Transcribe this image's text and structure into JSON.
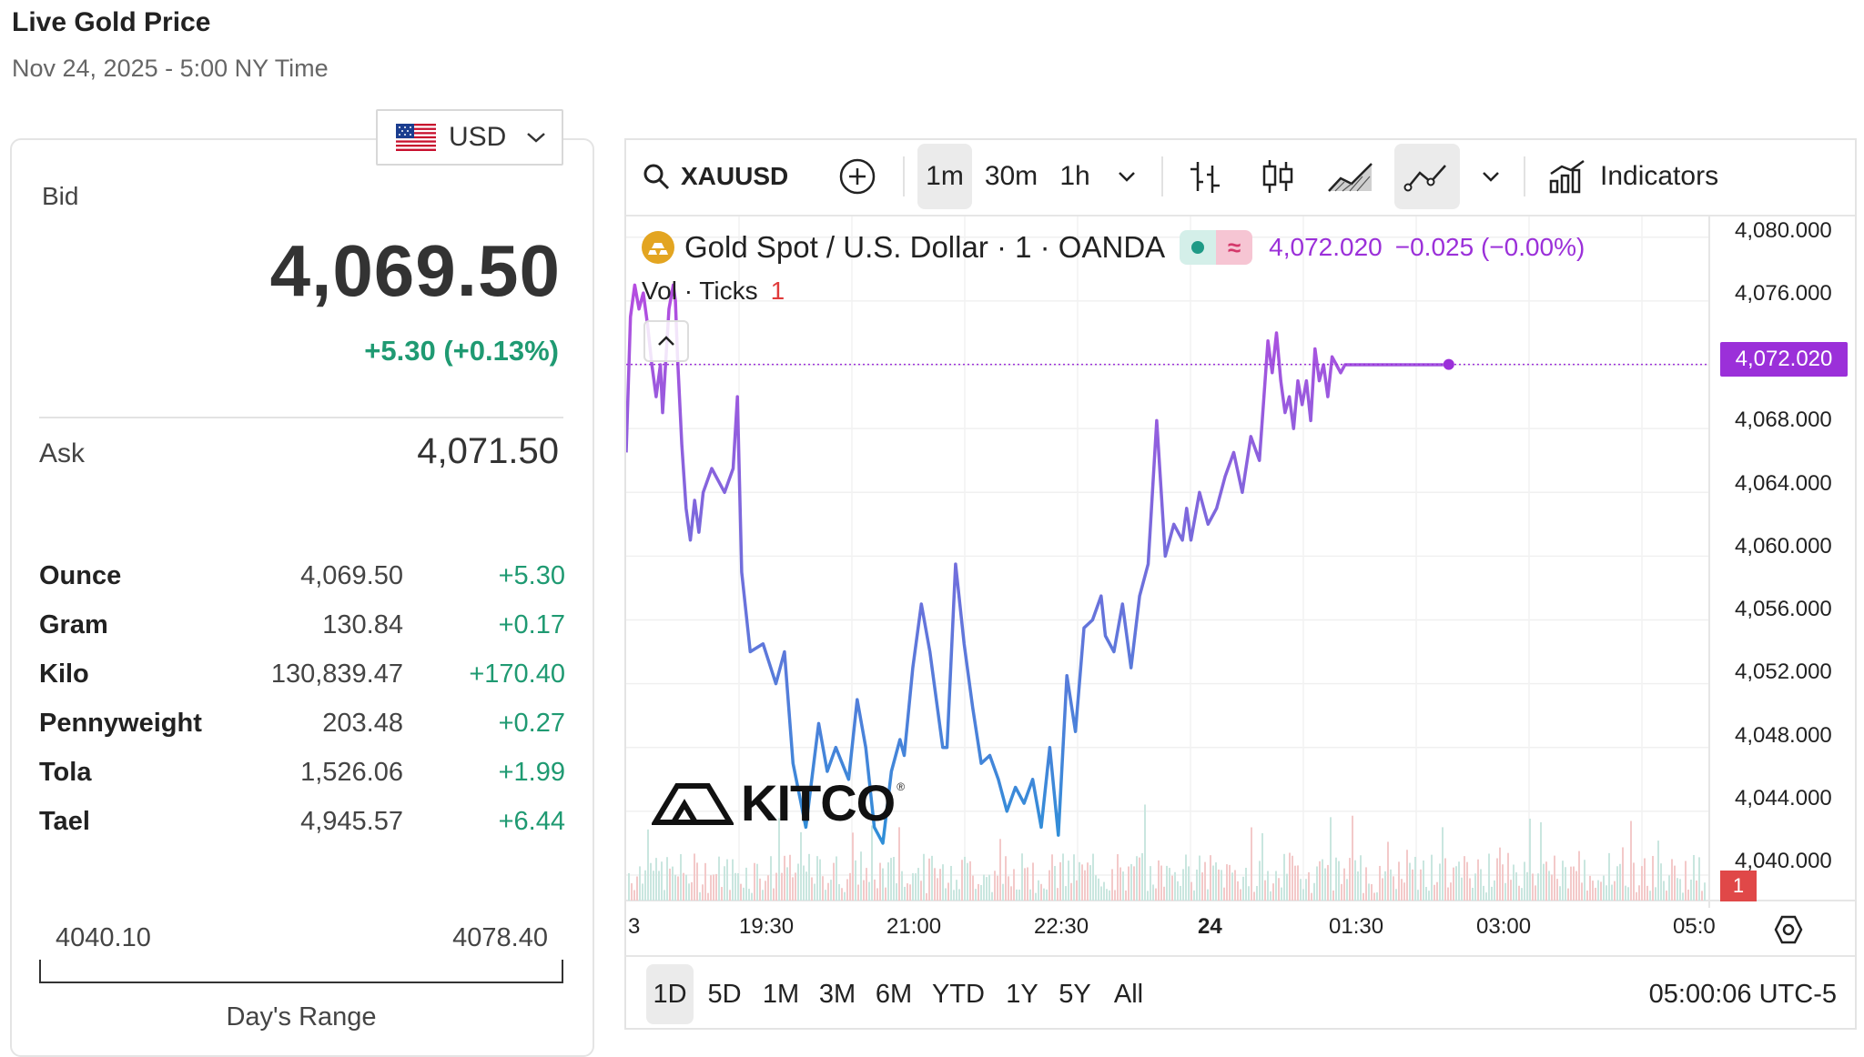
{
  "header": {
    "title": "Live Gold Price",
    "subtitle": "Nov 24, 2025 - 5:00 NY Time"
  },
  "currency": {
    "selected": "USD"
  },
  "price_panel": {
    "bid_label": "Bid",
    "bid": "4,069.50",
    "bid_change": "+5.30 (+0.13%)",
    "ask_label": "Ask",
    "ask": "4,071.50",
    "units": [
      {
        "name": "Ounce",
        "price": "4,069.50",
        "change": "+5.30"
      },
      {
        "name": "Gram",
        "price": "130.84",
        "change": "+0.17"
      },
      {
        "name": "Kilo",
        "price": "130,839.47",
        "change": "+170.40"
      },
      {
        "name": "Pennyweight",
        "price": "203.48",
        "change": "+0.27"
      },
      {
        "name": "Tola",
        "price": "1,526.06",
        "change": "+1.99"
      },
      {
        "name": "Tael",
        "price": "4,945.57",
        "change": "+6.44"
      }
    ],
    "range_low": "4040.10",
    "range_high": "4078.40",
    "range_caption": "Day's Range"
  },
  "chart_toolbar": {
    "symbol": "XAUUSD",
    "intervals": [
      "1m",
      "30m",
      "1h"
    ],
    "active_interval": "1m",
    "indicators_label": "Indicators"
  },
  "chart_legend": {
    "instrument": "Gold Spot / U.S. Dollar · 1 · OANDA",
    "last_price": "4,072.020",
    "change": "−0.025 (−0.00%)",
    "volume_label": "Vol · Ticks",
    "volume_count": "1"
  },
  "chart_data": {
    "type": "line",
    "y_ticks": [
      "4,080.000",
      "4,076.000",
      "4,072.000",
      "4,068.000",
      "4,064.000",
      "4,060.000",
      "4,056.000",
      "4,052.000",
      "4,048.000",
      "4,044.000",
      "4,040.000"
    ],
    "x_ticks": [
      "3",
      "19:30",
      "21:00",
      "22:30",
      "24",
      "01:30",
      "03:00",
      "05:0"
    ],
    "ylim": [
      4038.4,
      4081.3
    ],
    "x": [
      0,
      2,
      4,
      6,
      8,
      10,
      12,
      14,
      16,
      17,
      20,
      22,
      23,
      24,
      26,
      28,
      30,
      32,
      34,
      36,
      40,
      46,
      50,
      52,
      54,
      58,
      64,
      70,
      74,
      78,
      84,
      90,
      94,
      98,
      104,
      108,
      112,
      116,
      120,
      124,
      128,
      130,
      134,
      138,
      142,
      144,
      148,
      150,
      154,
      158,
      162,
      166,
      170,
      174,
      178,
      182,
      186,
      190,
      194,
      198,
      202,
      206,
      210,
      214,
      218,
      222,
      224,
      228,
      232,
      236,
      240,
      244,
      248,
      252,
      256,
      260,
      262,
      264,
      268,
      272,
      276,
      280,
      284,
      288,
      292,
      296,
      300,
      302,
      304,
      306,
      308,
      310,
      312,
      314,
      316,
      318,
      320,
      322,
      324,
      326,
      328,
      330,
      332,
      334,
      336,
      338,
      342,
      346,
      350,
      354,
      358,
      362,
      366,
      370,
      374,
      376,
      378,
      380,
      382
    ],
    "values": [
      4066.5,
      4075,
      4077,
      4075.5,
      4076.5,
      4074.5,
      4072,
      4070,
      4072,
      4069,
      4075.5,
      4077,
      4076,
      4072.5,
      4067,
      4063,
      4061,
      4063.5,
      4061.5,
      4064,
      4065.5,
      4064,
      4065.5,
      4070,
      4059,
      4054,
      4054.5,
      4052,
      4054,
      4047,
      4043,
      4049.5,
      4046.5,
      4048,
      4046,
      4051,
      4048,
      4043,
      4042,
      4046.5,
      4048.5,
      4047.5,
      4053,
      4057,
      4054,
      4052,
      4048,
      4048,
      4059.5,
      4054.5,
      4050.5,
      4047,
      4047.5,
      4046,
      4044,
      4045.5,
      4044.5,
      4046,
      4043,
      4048,
      4042.5,
      4052.5,
      4049,
      4055.5,
      4056,
      4057.5,
      4055,
      4054,
      4057,
      4053,
      4057.5,
      4059.5,
      4068.5,
      4060,
      4062,
      4061,
      4063,
      4061,
      4064,
      4062,
      4063,
      4065,
      4066.5,
      4064,
      4067.5,
      4066,
      4073.5,
      4071.5,
      4074,
      4071,
      4069,
      4070,
      4068,
      4071,
      4069.5,
      4071,
      4068.5,
      4073,
      4071,
      4072,
      4070,
      4072.5,
      4072,
      4071.5,
      4072,
      4072,
      4072,
      4072,
      4072,
      4072,
      4072,
      4072,
      4072,
      4072,
      4072,
      4072,
      4072,
      4072,
      4072
    ],
    "last_value": 4072.02,
    "grid": true,
    "colors": {
      "line_start": "#b94ae0",
      "line_mid": "#2f8fd8",
      "line_end": "#9b30d9"
    }
  },
  "chart_axis_labels": {
    "x_ticks": [
      "3",
      "19:30",
      "21:00",
      "22:30",
      "24",
      "01:30",
      "03:00",
      "05:0"
    ]
  },
  "price_tag": "4,072.020",
  "volume_tag": "1",
  "watermark": "KITCO",
  "range_buttons": [
    "1D",
    "5D",
    "1M",
    "3M",
    "6M",
    "YTD",
    "1Y",
    "5Y",
    "All"
  ],
  "active_range": "1D",
  "clock": "05:00:06 UTC-5",
  "icons": {
    "search": "search-icon",
    "add": "plus-circle-icon",
    "chevron": "chevron-down-icon",
    "bar_chart": "bars-chart-icon",
    "candles": "candlestick-icon",
    "area": "area-chart-icon",
    "line": "line-chart-icon",
    "indicators": "indicators-icon",
    "goto": "goto-realtime-icon"
  }
}
